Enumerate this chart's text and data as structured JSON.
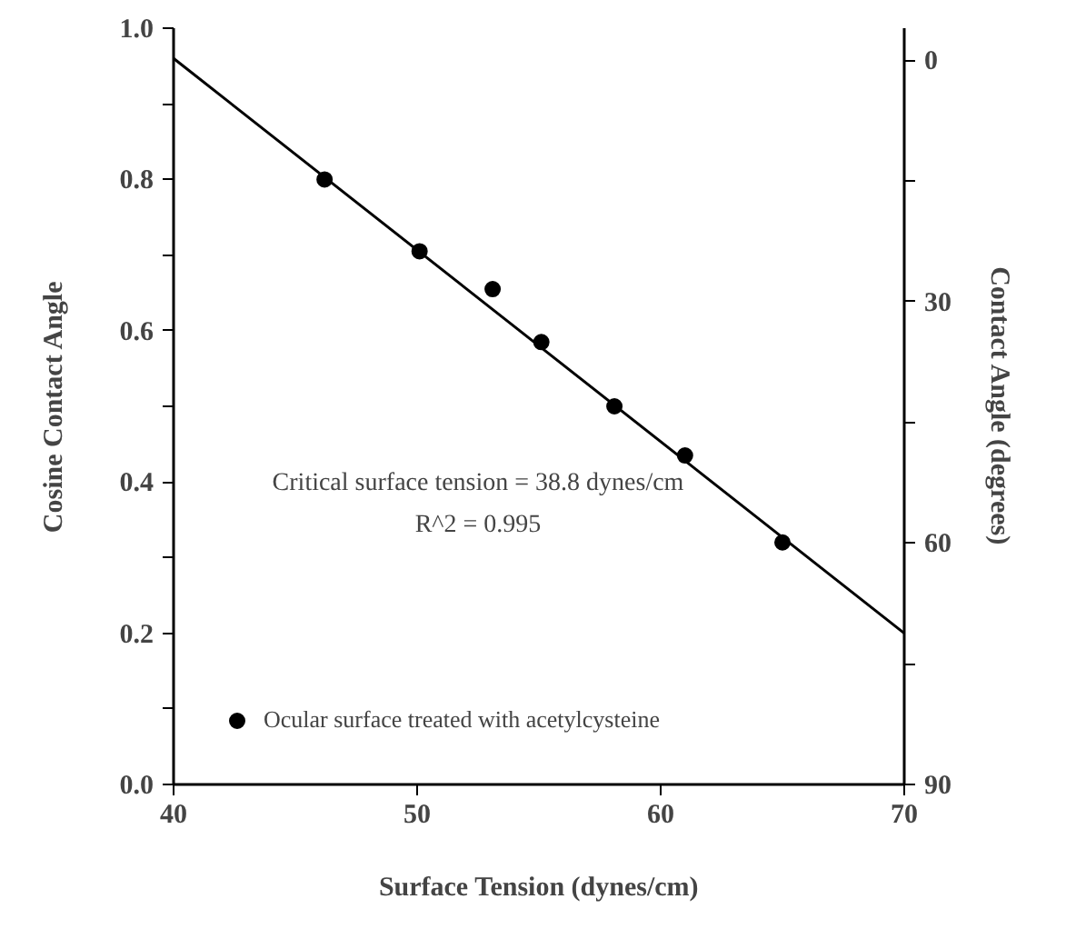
{
  "chart_data": {
    "type": "scatter",
    "xlabel": "Surface Tension (dynes/cm)",
    "ylabel": "Cosine Contact Angle",
    "y2label": "Contact Angle (degrees)",
    "series": [
      {
        "name": "Ocular surface treated with acetylcysteine",
        "marker": "circle",
        "color": "#000000",
        "x": [
          46.2,
          50.1,
          53.1,
          55.1,
          58.1,
          61.0,
          65.0
        ],
        "values": [
          0.8,
          0.705,
          0.655,
          0.585,
          0.5,
          0.435,
          0.32
        ]
      },
      {
        "type": "line",
        "color": "#000000",
        "x": [
          40,
          70
        ],
        "values": [
          0.96,
          0.2
        ]
      }
    ],
    "xlim": [
      40,
      70
    ],
    "xticks": [
      40,
      50,
      60,
      70
    ],
    "ylim": [
      0,
      1
    ],
    "yticks": [
      {
        "value": 0,
        "label": "0.0"
      },
      {
        "value": 0.1,
        "label": null
      },
      {
        "value": 0.2,
        "label": "0.2"
      },
      {
        "value": 0.3,
        "label": null
      },
      {
        "value": 0.4,
        "label": "0.4"
      },
      {
        "value": 0.5,
        "label": null
      },
      {
        "value": 0.6,
        "label": "0.6"
      },
      {
        "value": 0.7,
        "label": null
      },
      {
        "value": 0.8,
        "label": "0.8"
      },
      {
        "value": 0.9,
        "label": null
      },
      {
        "value": 1.0,
        "label": "1.0"
      }
    ],
    "y2lim": [
      90,
      -4
    ],
    "y2ticks": [
      0,
      {
        "value": 15,
        "label": null
      },
      30,
      {
        "value": 45,
        "label": null
      },
      60,
      {
        "value": 75,
        "label": null
      },
      90
    ],
    "annotations": [
      "Critical surface tension = 38.8 dynes/cm",
      "R^2 = 0.995"
    ],
    "legend": "bottom left",
    "grid": false
  }
}
